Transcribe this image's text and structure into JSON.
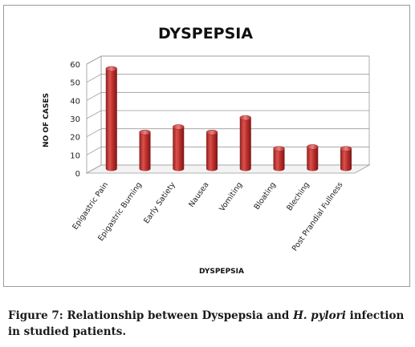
{
  "chart_data": {
    "type": "bar",
    "title": "DYSPEPSIA",
    "xlabel": "DYSPEPSIA",
    "ylabel": "NO OF CASES",
    "ylim": [
      0,
      60
    ],
    "yticks": [
      0,
      10,
      20,
      30,
      40,
      50,
      60
    ],
    "grid": true,
    "legend": "none",
    "categories": [
      "Epigastric Pain",
      "Epigastric Burning",
      "Early Satiety",
      "Nausea",
      "Vomiting",
      "Bloating",
      "Bleching",
      "Post Prandial Fullness"
    ],
    "values": [
      55,
      20,
      23,
      20,
      28,
      11,
      12,
      11
    ],
    "bar_color": "#c0312f"
  },
  "caption": {
    "prefix": "Figure 7: Relationship between Dyspepsia and",
    "italic": "H. pylori",
    "suffix": "infection in studied patients."
  }
}
